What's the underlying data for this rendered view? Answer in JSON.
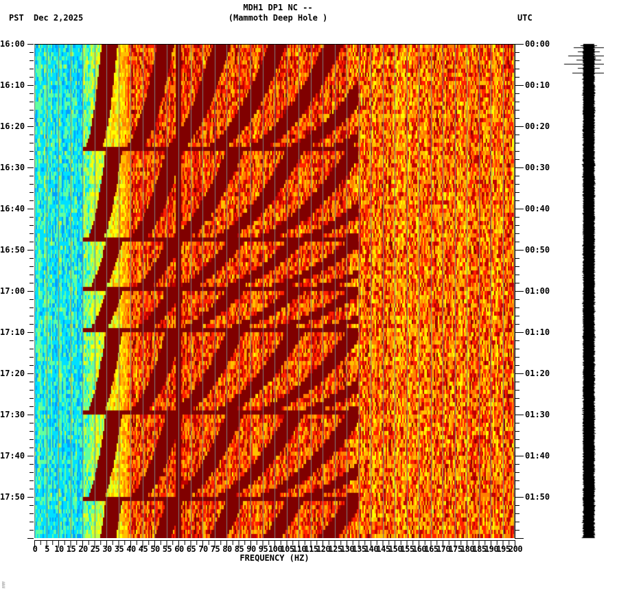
{
  "header": {
    "title_line1": "MDH1 DP1 NC --",
    "title_line2": "(Mammoth Deep Hole )",
    "left_timezone": "PST",
    "date": "Dec 2,2025",
    "right_timezone": "UTC"
  },
  "footer": {
    "mark": "░"
  },
  "chart_data": {
    "type": "heatmap",
    "title": "MDH1 DP1 NC -- (Mammoth Deep Hole )",
    "subtitle": "PST Dec 2,2025",
    "xlabel": "FREQUENCY (HZ)",
    "ylabel_left": "PST",
    "ylabel_right": "UTC",
    "xlim": [
      0,
      200
    ],
    "x_ticks": [
      "0",
      "5",
      "10",
      "15",
      "20",
      "25",
      "30",
      "35",
      "40",
      "45",
      "50",
      "55",
      "60",
      "65",
      "70",
      "75",
      "80",
      "85",
      "90",
      "95",
      "100",
      "105",
      "110",
      "115",
      "120",
      "125",
      "130",
      "135",
      "140",
      "145",
      "150",
      "155",
      "160",
      "165",
      "170",
      "175",
      "180",
      "185",
      "190",
      "195",
      "200"
    ],
    "x_tick_step": 5,
    "y_range_minutes": 120,
    "y_ticks_left": [
      "16:00",
      "16:10",
      "16:20",
      "16:30",
      "16:40",
      "16:50",
      "17:00",
      "17:10",
      "17:20",
      "17:30",
      "17:40",
      "17:50"
    ],
    "y_ticks_right": [
      "00:00",
      "00:10",
      "00:20",
      "00:30",
      "00:40",
      "00:50",
      "01:00",
      "01:10",
      "01:20",
      "01:30",
      "01:40",
      "01:50"
    ],
    "minor_tick_minutes": 2,
    "grid": true,
    "grid_color": "#808080",
    "colormap": [
      "#0000c8",
      "#0050ff",
      "#00a0ff",
      "#00e0ff",
      "#60ffa0",
      "#c0ff40",
      "#ffff00",
      "#ffc000",
      "#ff8000",
      "#ff2000",
      "#c00000",
      "#800000"
    ],
    "persistent_lines_hz": [
      60
    ],
    "low_freq_character": "blue/cyan noise below ~20 Hz",
    "high_freq_character": "yellow/orange/red noise above ~130 Hz",
    "chirp_events": [
      {
        "start_min": -12,
        "end_min": 26,
        "harmonics": 9
      },
      {
        "start_min": 26,
        "end_min": 48,
        "harmonics": 9
      },
      {
        "start_min": 48,
        "end_min": 60,
        "harmonics": 7
      },
      {
        "start_min": 60,
        "end_min": 70,
        "harmonics": 7
      },
      {
        "start_min": 70,
        "end_min": 90,
        "harmonics": 9
      },
      {
        "start_min": 90,
        "end_min": 111,
        "harmonics": 9
      },
      {
        "start_min": 111,
        "end_min": 132,
        "harmonics": 9
      }
    ],
    "seismogram": {
      "color": "#000000",
      "x_center": 858,
      "width": 18,
      "spikes_near_top": true
    }
  }
}
